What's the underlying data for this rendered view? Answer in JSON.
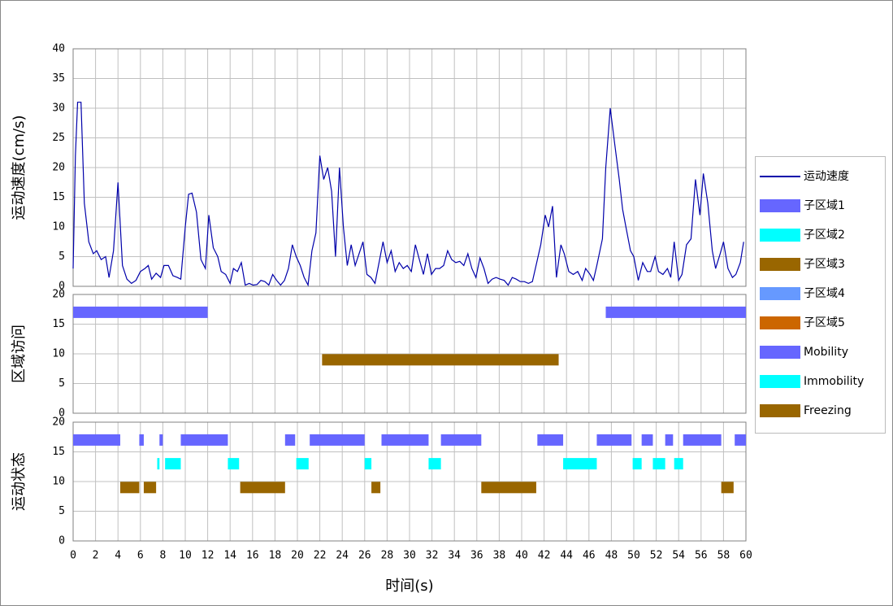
{
  "chart_data": [
    {
      "type": "line",
      "ylabel": "运动速度(cm/s)",
      "xlim": [
        0,
        60
      ],
      "ylim": [
        0,
        40
      ],
      "xticks": [
        0,
        2,
        4,
        6,
        8,
        10,
        12,
        14,
        16,
        18,
        20,
        22,
        24,
        26,
        28,
        30,
        32,
        34,
        36,
        38,
        40,
        42,
        44,
        46,
        48,
        50,
        52,
        54,
        56,
        58,
        60
      ],
      "yticks": [
        0,
        5,
        10,
        15,
        20,
        25,
        30,
        35,
        40
      ],
      "grid": true,
      "legend": "right",
      "series": [
        {
          "name": "运动速度",
          "color": "#0000aa",
          "x": [
            0,
            0.2,
            0.4,
            0.7,
            1.0,
            1.4,
            1.8,
            2.1,
            2.5,
            2.9,
            3.2,
            3.6,
            4.0,
            4.4,
            4.8,
            5.2,
            5.6,
            6.0,
            6.4,
            6.7,
            7.0,
            7.4,
            7.8,
            8.1,
            8.5,
            8.9,
            9.3,
            9.6,
            10.0,
            10.3,
            10.6,
            11.0,
            11.4,
            11.8,
            12.1,
            12.5,
            12.9,
            13.2,
            13.6,
            14.0,
            14.3,
            14.65,
            15.0,
            15.35,
            15.7,
            16.05,
            16.4,
            16.75,
            17.1,
            17.45,
            17.8,
            18.15,
            18.5,
            18.85,
            19.2,
            19.55,
            19.9,
            20.25,
            20.6,
            20.95,
            21.3,
            21.65,
            22.0,
            22.35,
            22.7,
            23.05,
            23.4,
            23.75,
            24.1,
            24.45,
            24.8,
            25.15,
            25.5,
            25.85,
            26.2,
            26.56,
            26.92,
            27.28,
            27.64,
            28,
            28.36,
            28.72,
            29.08,
            29.44,
            29.8,
            30.16,
            30.52,
            30.88,
            31.24,
            31.6,
            31.96,
            32.32,
            32.68,
            33.04,
            33.4,
            33.76,
            34.12,
            34.48,
            34.84,
            35.2,
            35.56,
            35.92,
            36.28,
            36.64,
            37,
            37.36,
            37.72,
            38.08,
            38.44,
            38.8,
            39.16,
            39.52,
            39.88,
            40.24,
            40.6,
            40.96,
            41.7,
            42.1,
            42.4,
            42.75,
            43.1,
            43.5,
            43.8,
            44.2,
            44.6,
            45,
            45.4,
            45.7,
            46.1,
            46.4,
            46.7,
            47.2,
            47.5,
            47.9,
            48.3,
            48.7,
            49,
            49.3,
            49.7,
            50,
            50.4,
            50.8,
            51.2,
            51.5,
            51.9,
            52.2,
            52.6,
            53,
            53.3,
            53.6,
            54,
            54.3,
            54.7,
            55.1,
            55.5,
            55.9,
            56.2,
            56.6,
            57,
            57.3,
            57.7,
            58,
            58.4,
            58.8,
            59.1,
            59.5,
            59.8
          ],
          "values": [
            3,
            22,
            31,
            31,
            14,
            7.5,
            5.5,
            6,
            4.5,
            5,
            1.5,
            6,
            17.5,
            3.5,
            1.2,
            0.5,
            1,
            2.5,
            3,
            3.5,
            1.2,
            2.2,
            1.5,
            3.5,
            3.5,
            1.8,
            1.5,
            1.2,
            10,
            15.5,
            15.7,
            12.5,
            4.5,
            3,
            12,
            6.5,
            5,
            2.5,
            2,
            0.5,
            3,
            2.5,
            4,
            0.2,
            0.5,
            0.2,
            0.3,
            1,
            0.8,
            0.2,
            2,
            1,
            0.2,
            1,
            3,
            7,
            5,
            3.5,
            1.5,
            0.2,
            6,
            9,
            22,
            18,
            20,
            16,
            5,
            20,
            10,
            3.5,
            7,
            3.5,
            5.5,
            7.5,
            2,
            1.5,
            0.5,
            4,
            7.5,
            4,
            6,
            2.5,
            4,
            3,
            3.5,
            2.5,
            7,
            4.5,
            2,
            5.5,
            2,
            3,
            3,
            3.5,
            6,
            4.5,
            4,
            4.2,
            3.5,
            5.5,
            3,
            1.5,
            4.8,
            3,
            0.5,
            1.2,
            1.5,
            1.2,
            1,
            0.2,
            1.5,
            1.2,
            0.8,
            0.8,
            0.5,
            0.8,
            7,
            12,
            10,
            13.5,
            1.5,
            7,
            5.5,
            2.5,
            2,
            2.5,
            1,
            3,
            2,
            1,
            3.5,
            8,
            20,
            30,
            24,
            18,
            13,
            10,
            6,
            5,
            1,
            4,
            2.5,
            2.5,
            5,
            2.5,
            2,
            3,
            1.5,
            7.5,
            1,
            2,
            7,
            8,
            18,
            12,
            19,
            14,
            6,
            3,
            5.5,
            7.5,
            3,
            1.5,
            2,
            4,
            7.5
          ]
        }
      ]
    },
    {
      "type": "gantt",
      "ylabel": "区域访问",
      "xlim": [
        0,
        60
      ],
      "ylim": [
        0,
        20
      ],
      "xticks": [
        0,
        2,
        4,
        6,
        8,
        10,
        12,
        14,
        16,
        18,
        20,
        22,
        24,
        26,
        28,
        30,
        32,
        34,
        36,
        38,
        40,
        42,
        44,
        46,
        48,
        50,
        52,
        54,
        56,
        58,
        60
      ],
      "yticks": [
        0,
        5,
        10,
        15,
        20
      ],
      "grid": true,
      "series": [
        {
          "name": "子区域1",
          "color": "#6666ff",
          "level": 17,
          "intervals": [
            [
              0,
              12
            ],
            [
              47.5,
              60
            ]
          ]
        },
        {
          "name": "子区域2",
          "color": "#00ffff",
          "intervals": []
        },
        {
          "name": "子区域3",
          "color": "#996600",
          "level": 9,
          "intervals": [
            [
              22.2,
              43.3
            ]
          ]
        },
        {
          "name": "子区域4",
          "color": "#6699ff",
          "intervals": []
        },
        {
          "name": "子区域5",
          "color": "#cc6600",
          "intervals": []
        }
      ]
    },
    {
      "type": "gantt",
      "ylabel": "运动状态",
      "xlabel": "时间(s)",
      "xlim": [
        0,
        60
      ],
      "ylim": [
        0,
        20
      ],
      "xticks": [
        0,
        2,
        4,
        6,
        8,
        10,
        12,
        14,
        16,
        18,
        20,
        22,
        24,
        26,
        28,
        30,
        32,
        34,
        36,
        38,
        40,
        42,
        44,
        46,
        48,
        50,
        52,
        54,
        56,
        58,
        60
      ],
      "yticks": [
        0,
        5,
        10,
        15,
        20
      ],
      "grid": true,
      "series": [
        {
          "name": "Mobility",
          "color": "#6666ff",
          "level": 17,
          "intervals": [
            [
              0,
              4.2
            ],
            [
              5.9,
              6.3
            ],
            [
              7.7,
              8.0
            ],
            [
              9.6,
              13.8
            ],
            [
              18.9,
              19.8
            ],
            [
              21.1,
              26.0
            ],
            [
              27.5,
              31.7
            ],
            [
              32.8,
              36.4
            ],
            [
              41.4,
              43.7
            ],
            [
              46.7,
              49.8
            ],
            [
              50.7,
              51.7
            ],
            [
              52.8,
              53.5
            ],
            [
              54.4,
              57.8
            ],
            [
              59,
              60
            ]
          ]
        },
        {
          "name": "Immobility",
          "color": "#00ffff",
          "level": 13,
          "intervals": [
            [
              7.5,
              7.7
            ],
            [
              8.2,
              9.6
            ],
            [
              13.8,
              14.8
            ],
            [
              19.9,
              21.0
            ],
            [
              26.0,
              26.6
            ],
            [
              31.7,
              32.8
            ],
            [
              43.7,
              46.7
            ],
            [
              49.9,
              50.7
            ],
            [
              51.7,
              52.8
            ],
            [
              53.6,
              54.4
            ]
          ]
        },
        {
          "name": "Freezing",
          "color": "#996600",
          "level": 9,
          "intervals": [
            [
              4.2,
              5.9
            ],
            [
              6.3,
              7.4
            ],
            [
              14.9,
              18.9
            ],
            [
              26.6,
              27.4
            ],
            [
              36.4,
              41.3
            ],
            [
              57.8,
              58.9
            ]
          ]
        }
      ]
    }
  ]
}
